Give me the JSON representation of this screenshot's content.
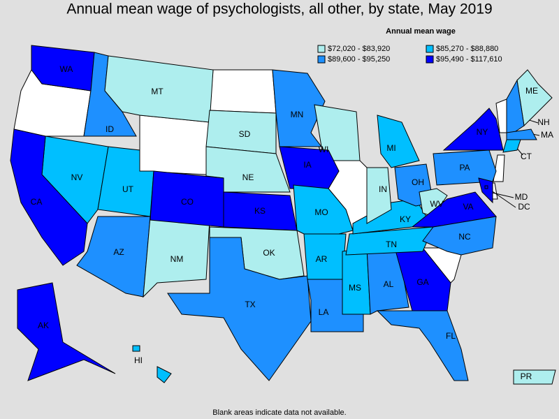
{
  "title": "Annual mean wage of psychologists, all other, by state, May 2019",
  "legend": {
    "title": "Annual mean wage",
    "items": [
      {
        "label": "$72,020 - $83,920",
        "color": "#aeeeee"
      },
      {
        "label": "$85,270 - $88,880",
        "color": "#00bfff"
      },
      {
        "label": "$89,600 - $95,250",
        "color": "#1e90ff"
      },
      {
        "label": "$95,490 - $117,610",
        "color": "#0000ff"
      }
    ]
  },
  "states": [
    {
      "label": "WA",
      "color": "#0000ff"
    },
    {
      "label": "ID",
      "color": "#1e90ff"
    },
    {
      "label": "MT",
      "color": "#aeeeee"
    },
    {
      "label": "SD",
      "color": "#aeeeee"
    },
    {
      "label": "NE",
      "color": "#aeeeee"
    },
    {
      "label": "MN",
      "color": "#1e90ff"
    },
    {
      "label": "WI",
      "color": "#aeeeee"
    },
    {
      "label": "IA",
      "color": "#0000ff"
    },
    {
      "label": "NV",
      "color": "#00bfff"
    },
    {
      "label": "UT",
      "color": "#00bfff"
    },
    {
      "label": "CA",
      "color": "#0000ff"
    },
    {
      "label": "AZ",
      "color": "#1e90ff"
    },
    {
      "label": "NM",
      "color": "#aeeeee"
    },
    {
      "label": "CO",
      "color": "#0000ff"
    },
    {
      "label": "KS",
      "color": "#0000ff"
    },
    {
      "label": "OK",
      "color": "#aeeeee"
    },
    {
      "label": "TX",
      "color": "#1e90ff"
    },
    {
      "label": "MO",
      "color": "#00bfff"
    },
    {
      "label": "AR",
      "color": "#00bfff"
    },
    {
      "label": "LA",
      "color": "#1e90ff"
    },
    {
      "label": "MS",
      "color": "#00bfff"
    },
    {
      "label": "AL",
      "color": "#1e90ff"
    },
    {
      "label": "GA",
      "color": "#0000ff"
    },
    {
      "label": "FL",
      "color": "#1e90ff"
    },
    {
      "label": "TN",
      "color": "#00bfff"
    },
    {
      "label": "KY",
      "color": "#00bfff"
    },
    {
      "label": "IN",
      "color": "#aeeeee"
    },
    {
      "label": "MI",
      "color": "#00bfff"
    },
    {
      "label": "OH",
      "color": "#1e90ff"
    },
    {
      "label": "WV",
      "color": "#aeeeee"
    },
    {
      "label": "VA",
      "color": "#0000ff"
    },
    {
      "label": "NC",
      "color": "#1e90ff"
    },
    {
      "label": "PA",
      "color": "#1e90ff"
    },
    {
      "label": "NY",
      "color": "#0000ff"
    },
    {
      "label": "ME",
      "color": "#aeeeee"
    },
    {
      "label": "NH",
      "color": "#1e90ff"
    },
    {
      "label": "MA",
      "color": "#1e90ff"
    },
    {
      "label": "CT",
      "color": "#00bfff"
    },
    {
      "label": "AK",
      "color": "#0000ff"
    },
    {
      "label": "HI",
      "color": "#00bfff"
    },
    {
      "label": "PR",
      "color": "#aeeeee"
    },
    {
      "label": "MD",
      "color": "#0000ff"
    },
    {
      "label": "DC",
      "color": "#0000ff"
    }
  ],
  "note": "Blank areas indicate data not available."
}
